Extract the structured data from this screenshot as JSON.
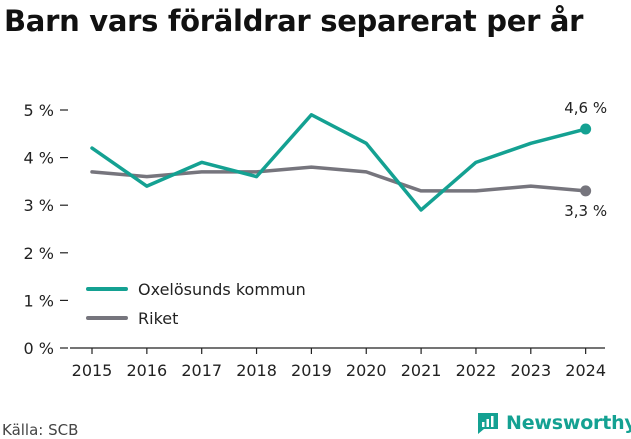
{
  "title": "Barn vars föräldrar separerat per år",
  "source": "Källa: SCB",
  "brand": {
    "name": "Newsworthy",
    "icon": "newsworthy-logo-icon",
    "color": "#14a192"
  },
  "chart_data": {
    "type": "line",
    "title": "Barn vars föräldrar separerat per år",
    "x": [
      "2015",
      "2016",
      "2017",
      "2018",
      "2019",
      "2020",
      "2021",
      "2022",
      "2023",
      "2024"
    ],
    "yticks": [
      "0 %",
      "1 %",
      "2 %",
      "3 %",
      "4 %",
      "5 %"
    ],
    "ylim": [
      0,
      5
    ],
    "grid": false,
    "legend_position": "bottom-left",
    "series": [
      {
        "name": "Oxelösunds kommun",
        "color": "#14a192",
        "values": [
          4.2,
          3.4,
          3.9,
          3.6,
          4.9,
          4.3,
          2.9,
          3.9,
          4.3,
          4.6
        ],
        "end_label": "4,6 %"
      },
      {
        "name": "Riket",
        "color": "#76757d",
        "values": [
          3.7,
          3.6,
          3.7,
          3.7,
          3.8,
          3.7,
          3.3,
          3.3,
          3.4,
          3.3
        ],
        "end_label": "3,3 %"
      }
    ]
  }
}
